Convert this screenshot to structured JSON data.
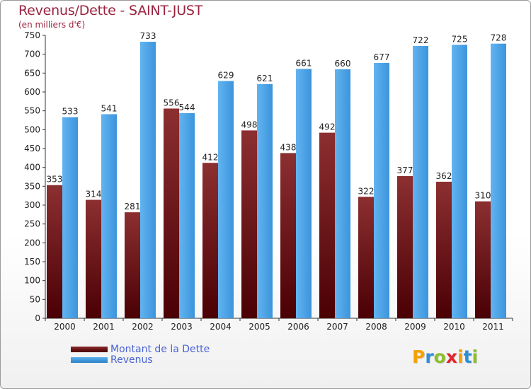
{
  "header": {
    "title": "Revenus/Dette - SAINT-JUST",
    "subtitle": "(en milliers d'€)"
  },
  "legend": {
    "items": [
      {
        "label": "Montant de la Dette",
        "color": "#6e1214"
      },
      {
        "label": "Revenus",
        "color": "#3f97dc"
      }
    ]
  },
  "logo": {
    "letters": [
      {
        "ch": "P",
        "color": "#f5a100"
      },
      {
        "ch": "r",
        "color": "#2e8fd6"
      },
      {
        "ch": "o",
        "color": "#8bbf2a"
      },
      {
        "ch": "x",
        "color": "#e0252b"
      },
      {
        "ch": "i",
        "color": "#f5a100"
      },
      {
        "ch": "t",
        "color": "#2e8fd6"
      },
      {
        "ch": "i",
        "color": "#8bbf2a"
      }
    ]
  },
  "chart_data": {
    "type": "bar",
    "title": "Revenus/Dette - SAINT-JUST",
    "subtitle": "(en milliers d'€)",
    "categories": [
      "2000",
      "2001",
      "2002",
      "2003",
      "2004",
      "2005",
      "2006",
      "2007",
      "2008",
      "2009",
      "2010",
      "2011"
    ],
    "series": [
      {
        "name": "Montant de la Dette",
        "color": "#6e1214",
        "values": [
          353,
          314,
          281,
          556,
          412,
          498,
          438,
          492,
          322,
          377,
          362,
          310
        ]
      },
      {
        "name": "Revenus",
        "color": "#3f97dc",
        "values": [
          533,
          541,
          733,
          544,
          629,
          621,
          661,
          660,
          677,
          722,
          725,
          728
        ]
      }
    ],
    "ylim": [
      0,
      750
    ],
    "ytick_step": 50,
    "grid": false,
    "legend_position": "bottom-left"
  }
}
